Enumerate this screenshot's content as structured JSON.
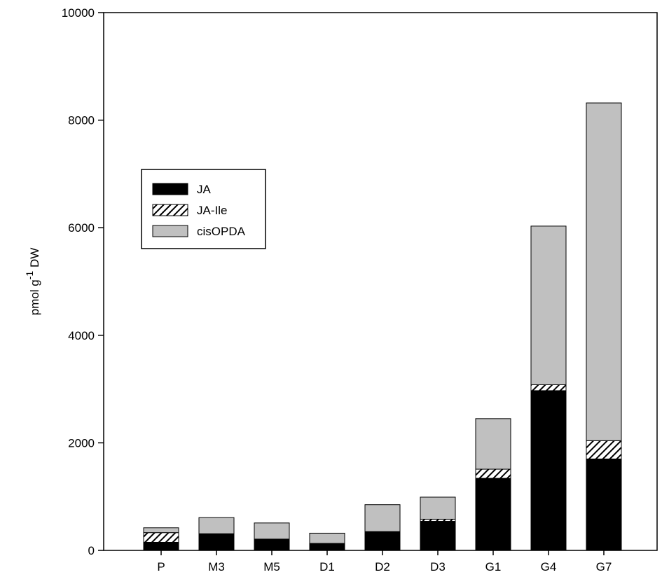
{
  "chart_data": {
    "type": "bar",
    "stacked": true,
    "categories": [
      "P",
      "M3",
      "M5",
      "D1",
      "D2",
      "D3",
      "G1",
      "G4",
      "G7"
    ],
    "series": [
      {
        "name": "JA",
        "color": "#000000",
        "pattern": "solid",
        "values": [
          150,
          300,
          200,
          120,
          340,
          540,
          1340,
          2970,
          1700
        ]
      },
      {
        "name": "JA-Ile",
        "color": "#000000",
        "pattern": "hatch",
        "values": [
          180,
          10,
          10,
          10,
          10,
          40,
          170,
          110,
          340
        ]
      },
      {
        "name": "cisOPDA",
        "color": "#c0c0c0",
        "pattern": "solid",
        "values": [
          90,
          300,
          300,
          190,
          500,
          410,
          940,
          2950,
          6280
        ]
      }
    ],
    "ylabel_main": "pmol g",
    "ylabel_superscript": "-1",
    "ylabel_suffix": " DW",
    "xlabel": "",
    "ylim": [
      0,
      10000
    ],
    "yticks": [
      0,
      2000,
      4000,
      6000,
      8000,
      10000
    ],
    "grid": false,
    "legend_position": "upper-left"
  }
}
